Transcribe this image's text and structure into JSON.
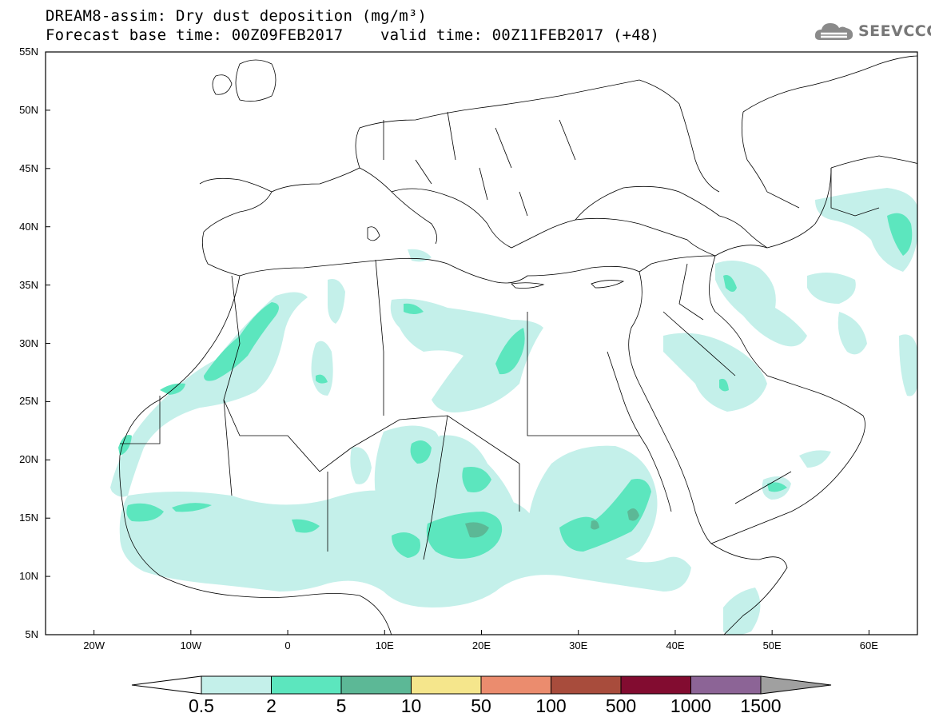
{
  "header": {
    "title_line1": "DREAM8-assim: Dry dust deposition (mg/m³)",
    "title_line2": "Forecast base time: 00Z09FEB2017    valid time: 00Z11FEB2017 (+48)"
  },
  "logo": {
    "text": "SEEVCCC",
    "icon": "cloud-logo-icon"
  },
  "axes": {
    "lat_labels": [
      "55N",
      "50N",
      "45N",
      "40N",
      "35N",
      "30N",
      "25N",
      "20N",
      "15N",
      "10N",
      "5N"
    ],
    "lon_labels": [
      "20W",
      "10W",
      "0",
      "10E",
      "20E",
      "30E",
      "40E",
      "50E",
      "60E"
    ],
    "lon_range": [
      -25,
      65
    ],
    "lat_range": [
      5,
      55
    ]
  },
  "colorbar": {
    "labels": [
      "0.5",
      "2",
      "5",
      "10",
      "50",
      "100",
      "500",
      "1000",
      "1500"
    ],
    "colors": [
      "#c4f0ea",
      "#5ce6be",
      "#5cb896",
      "#f5e68c",
      "#eb8c6e",
      "#a84c3c",
      "#820c30",
      "#8c6496",
      "#a0a0a0"
    ]
  }
}
